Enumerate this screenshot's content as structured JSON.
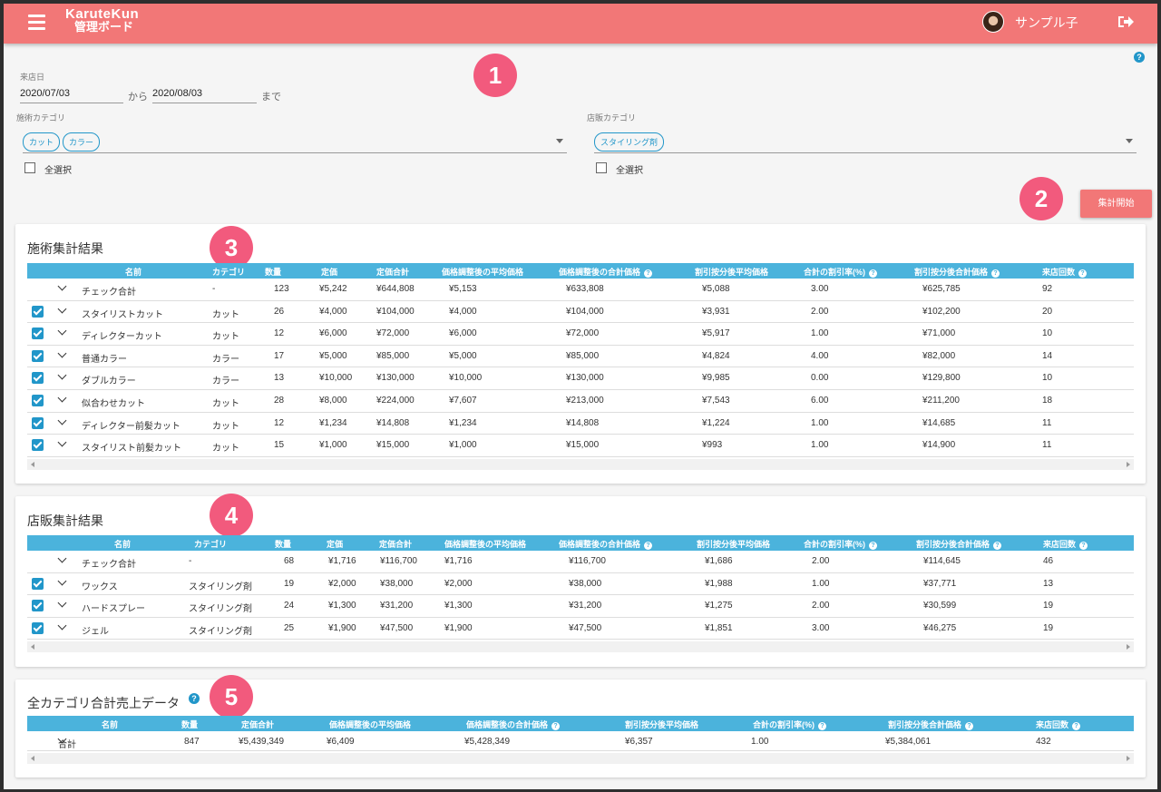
{
  "header": {
    "logo_line1": "KaruteKun",
    "logo_line2": "管理ボード",
    "user_name": "サンプル子"
  },
  "filters": {
    "visit_date_label": "来店日",
    "date_from": "2020/07/03",
    "from_suffix": "から",
    "date_to": "2020/08/03",
    "to_suffix": "まで",
    "service_category_label": "施術カテゴリ",
    "service_chips": [
      "カット",
      "カラー"
    ],
    "service_select_all": "全選択",
    "retail_category_label": "店販カテゴリ",
    "retail_chips": [
      "スタイリング剤"
    ],
    "retail_select_all": "全選択",
    "start_button": "集計開始"
  },
  "callouts": [
    "1",
    "2",
    "3",
    "4",
    "5"
  ],
  "service_results": {
    "title": "施術集計結果",
    "headers": [
      "名前",
      "カテゴリ",
      "数量",
      "定価",
      "定価合計",
      "価格調整後の平均価格",
      "価格調整後の合計価格",
      "割引按分後平均価格",
      "合計の割引率(%)",
      "割引按分後合計価格",
      "来店回数"
    ],
    "rows": [
      {
        "checked": false,
        "cells": [
          "チェック合計",
          "-",
          "123",
          "¥5,242",
          "¥644,808",
          "¥5,153",
          "¥633,808",
          "¥5,088",
          "3.00",
          "¥625,785",
          "92"
        ]
      },
      {
        "checked": true,
        "cells": [
          "スタイリストカット",
          "カット",
          "26",
          "¥4,000",
          "¥104,000",
          "¥4,000",
          "¥104,000",
          "¥3,931",
          "2.00",
          "¥102,200",
          "20"
        ]
      },
      {
        "checked": true,
        "cells": [
          "ディレクターカット",
          "カット",
          "12",
          "¥6,000",
          "¥72,000",
          "¥6,000",
          "¥72,000",
          "¥5,917",
          "1.00",
          "¥71,000",
          "10"
        ]
      },
      {
        "checked": true,
        "cells": [
          "普通カラー",
          "カラー",
          "17",
          "¥5,000",
          "¥85,000",
          "¥5,000",
          "¥85,000",
          "¥4,824",
          "4.00",
          "¥82,000",
          "14"
        ]
      },
      {
        "checked": true,
        "cells": [
          "ダブルカラー",
          "カラー",
          "13",
          "¥10,000",
          "¥130,000",
          "¥10,000",
          "¥130,000",
          "¥9,985",
          "0.00",
          "¥129,800",
          "10"
        ]
      },
      {
        "checked": true,
        "cells": [
          "似合わせカット",
          "カット",
          "28",
          "¥8,000",
          "¥224,000",
          "¥7,607",
          "¥213,000",
          "¥7,543",
          "6.00",
          "¥211,200",
          "18"
        ]
      },
      {
        "checked": true,
        "cells": [
          "ディレクター前髪カット",
          "カット",
          "12",
          "¥1,234",
          "¥14,808",
          "¥1,234",
          "¥14,808",
          "¥1,224",
          "1.00",
          "¥14,685",
          "11"
        ]
      },
      {
        "checked": true,
        "cells": [
          "スタイリスト前髪カット",
          "カット",
          "15",
          "¥1,000",
          "¥15,000",
          "¥1,000",
          "¥15,000",
          "¥993",
          "1.00",
          "¥14,900",
          "11"
        ]
      }
    ]
  },
  "retail_results": {
    "title": "店販集計結果",
    "headers": [
      "名前",
      "カテゴリ",
      "数量",
      "定価",
      "定価合計",
      "価格調整後の平均価格",
      "価格調整後の合計価格",
      "割引按分後平均価格",
      "合計の割引率(%)",
      "割引按分後合計価格",
      "来店回数"
    ],
    "rows": [
      {
        "checked": false,
        "cells": [
          "チェック合計",
          "-",
          "68",
          "¥1,716",
          "¥116,700",
          "¥1,716",
          "¥116,700",
          "¥1,686",
          "2.00",
          "¥114,645",
          "46"
        ]
      },
      {
        "checked": true,
        "cells": [
          "ワックス",
          "スタイリング剤",
          "19",
          "¥2,000",
          "¥38,000",
          "¥2,000",
          "¥38,000",
          "¥1,988",
          "1.00",
          "¥37,771",
          "13"
        ]
      },
      {
        "checked": true,
        "cells": [
          "ハードスプレー",
          "スタイリング剤",
          "24",
          "¥1,300",
          "¥31,200",
          "¥1,300",
          "¥31,200",
          "¥1,275",
          "2.00",
          "¥30,599",
          "19"
        ]
      },
      {
        "checked": true,
        "cells": [
          "ジェル",
          "スタイリング剤",
          "25",
          "¥1,900",
          "¥47,500",
          "¥1,900",
          "¥47,500",
          "¥1,851",
          "3.00",
          "¥46,275",
          "19"
        ]
      }
    ]
  },
  "total_results": {
    "title": "全カテゴリ合計売上データ",
    "headers": [
      "名前",
      "数量",
      "定価合計",
      "価格調整後の平均価格",
      "価格調整後の合計価格",
      "割引按分後平均価格",
      "合計の割引率(%)",
      "割引按分後合計価格",
      "来店回数"
    ],
    "rows": [
      {
        "cells": [
          "合計",
          "847",
          "¥5,439,349",
          "¥6,409",
          "¥5,428,349",
          "¥6,357",
          "1.00",
          "¥5,384,061",
          "432"
        ]
      }
    ]
  },
  "colors": {
    "header": "#f27777",
    "accent": "#2196c9",
    "table_header": "#4bb3dc",
    "callout": "#f25a7d"
  }
}
